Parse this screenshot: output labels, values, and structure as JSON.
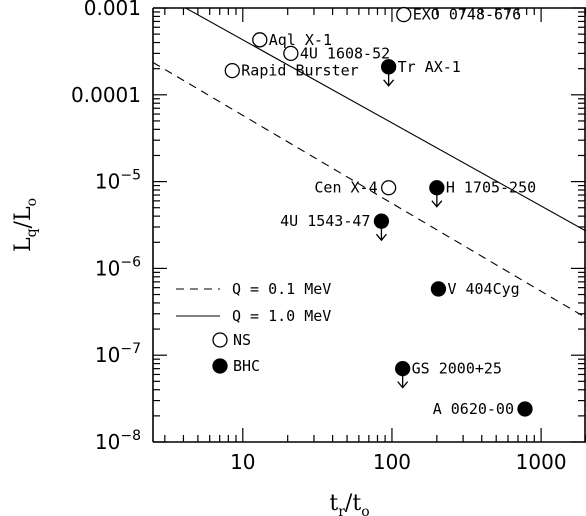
{
  "chart_data": {
    "type": "scatter",
    "xscale": "log",
    "yscale": "log",
    "xlim": [
      2.5,
      2000
    ],
    "ylim": [
      1e-08,
      0.001
    ],
    "xlabel": {
      "main": "t",
      "sub1": "r",
      "mid": "/t",
      "sub2": "o"
    },
    "ylabel": {
      "main": "L",
      "sub1": "q",
      "mid": "/L",
      "sub2": "o"
    },
    "x_ticks": [
      {
        "value": 10,
        "label": "10"
      },
      {
        "value": 100,
        "label": "100"
      },
      {
        "value": 1000,
        "label": "1000"
      }
    ],
    "y_ticks": [
      {
        "value": 0.001,
        "label": "0.001",
        "base": "",
        "exp": ""
      },
      {
        "value": 0.0001,
        "label": "0.0001",
        "base": "",
        "exp": ""
      },
      {
        "value": 1e-05,
        "label": "",
        "base": "10",
        "exp": "−5"
      },
      {
        "value": 1e-06,
        "label": "",
        "base": "10",
        "exp": "−6"
      },
      {
        "value": 1e-07,
        "label": "",
        "base": "10",
        "exp": "−7"
      },
      {
        "value": 1e-08,
        "label": "",
        "base": "10",
        "exp": "−8"
      }
    ],
    "series": [
      {
        "name": "NS",
        "marker": "open-circle",
        "points": [
          {
            "label": "EXO 0748-676",
            "x": 120,
            "y": 0.00084,
            "upper_limit": false,
            "label_pos": "right"
          },
          {
            "label": "Aql X-1",
            "x": 13,
            "y": 0.00043,
            "upper_limit": false,
            "label_pos": "right"
          },
          {
            "label": "4U 1608-52",
            "x": 21,
            "y": 0.0003,
            "upper_limit": false,
            "label_pos": "right"
          },
          {
            "label": "Rapid Burster",
            "x": 8.5,
            "y": 0.00019,
            "upper_limit": false,
            "label_pos": "right"
          },
          {
            "label": "Cen X-4",
            "x": 95,
            "y": 8.5e-06,
            "upper_limit": false,
            "label_pos": "left"
          }
        ]
      },
      {
        "name": "BHC",
        "marker": "filled-circle",
        "points": [
          {
            "label": "Tr AX-1",
            "x": 95,
            "y": 0.00021,
            "upper_limit": true,
            "label_pos": "right"
          },
          {
            "label": "H 1705-250",
            "x": 200,
            "y": 8.5e-06,
            "upper_limit": true,
            "label_pos": "right"
          },
          {
            "label": "4U 1543-47",
            "x": 85,
            "y": 3.5e-06,
            "upper_limit": true,
            "label_pos": "left"
          },
          {
            "label": "V 404Cyg",
            "x": 205,
            "y": 5.8e-07,
            "upper_limit": false,
            "label_pos": "right"
          },
          {
            "label": "GS 2000+25",
            "x": 118,
            "y": 7e-08,
            "upper_limit": true,
            "label_pos": "right"
          },
          {
            "label": "A 0620-00",
            "x": 780,
            "y": 2.4e-08,
            "upper_limit": false,
            "label_pos": "left"
          }
        ]
      }
    ],
    "lines": [
      {
        "name": "Q = 1.0 MeV",
        "style": "solid",
        "x": [
          2.5,
          2000
        ],
        "y": [
          0.00162,
          2.7e-06
        ]
      },
      {
        "name": "Q = 0.1 MeV",
        "style": "dashed",
        "x": [
          2.5,
          2000
        ],
        "y": [
          0.000236,
          2.7e-07
        ]
      }
    ],
    "legend": {
      "position": "lower-left",
      "lines": [
        {
          "style": "dashed",
          "label": "Q = 0.1 MeV"
        },
        {
          "style": "solid",
          "label": "Q = 1.0 MeV"
        }
      ],
      "markers": [
        {
          "marker": "open-circle",
          "label": "NS"
        },
        {
          "marker": "filled-circle",
          "label": "BHC"
        }
      ]
    }
  }
}
